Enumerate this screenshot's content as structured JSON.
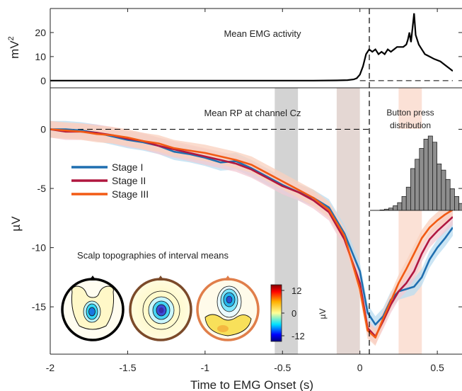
{
  "chart_data": [
    {
      "type": "line",
      "title": "Mean EMG activity",
      "ylabel": "mV",
      "ylabel_sup": "2",
      "xlim": [
        -2,
        0.6
      ],
      "ylim": [
        -3,
        30
      ],
      "yticks": [
        0,
        10,
        20
      ],
      "zero_line": 0,
      "series": [
        {
          "color": "#000000",
          "x": [
            -2,
            -0.3,
            -0.15,
            -0.08,
            -0.04,
            -0.02,
            0,
            0.02,
            0.04,
            0.06,
            0.08,
            0.1,
            0.12,
            0.14,
            0.16,
            0.18,
            0.2,
            0.22,
            0.24,
            0.26,
            0.28,
            0.3,
            0.31,
            0.32,
            0.33,
            0.34,
            0.35,
            0.36,
            0.38,
            0.4,
            0.42,
            0.45,
            0.48,
            0.52,
            0.56,
            0.6
          ],
          "y": [
            0,
            0,
            0.1,
            0.2,
            0.5,
            1,
            2.5,
            6,
            11,
            13,
            12,
            13,
            11,
            12,
            11,
            13,
            12,
            13,
            14,
            14,
            14,
            15,
            17,
            20,
            16,
            22,
            28,
            19,
            15,
            13,
            11,
            10,
            9,
            8,
            6,
            4
          ]
        }
      ]
    },
    {
      "type": "line",
      "title": "Mean RP at channel Cz",
      "xlabel": "Time to EMG Onset (s)",
      "ylabel": "µV",
      "xlim": [
        -2,
        0.6
      ],
      "ylim": [
        -19,
        3.5
      ],
      "xticks": [
        -2,
        -1.5,
        -1,
        -0.5,
        0,
        0.5
      ],
      "xtick_labels": [
        "-2",
        "-1.5",
        "-1",
        "-0.5",
        "0",
        "0.5"
      ],
      "yticks": [
        -15,
        -10,
        -5,
        0
      ],
      "zero_line": 0,
      "shaded_intervals": [
        {
          "from": -0.55,
          "to": -0.4,
          "color": "#d3d3d3"
        },
        {
          "from": -0.15,
          "to": 0,
          "color": "#e4d7d3"
        },
        {
          "from": 0.25,
          "to": 0.4,
          "color": "#fbe1d6"
        }
      ],
      "legend": {
        "placement": "middle-left"
      },
      "series": [
        {
          "name": "Stage I",
          "color": "#1f6fb0",
          "band": "#b9dcf0",
          "x": [
            -2,
            -1.9,
            -1.8,
            -1.7,
            -1.6,
            -1.5,
            -1.4,
            -1.3,
            -1.2,
            -1.1,
            -1.0,
            -0.9,
            -0.8,
            -0.7,
            -0.6,
            -0.5,
            -0.4,
            -0.3,
            -0.2,
            -0.1,
            0,
            0.05,
            0.1,
            0.15,
            0.2,
            0.25,
            0.3,
            0.35,
            0.4,
            0.45,
            0.5,
            0.55,
            0.6
          ],
          "y": [
            0,
            0,
            -0.1,
            -0.3,
            -0.6,
            -0.9,
            -1.1,
            -1.4,
            -1.9,
            -2.1,
            -2.4,
            -2.8,
            -2.7,
            -3.3,
            -4.0,
            -4.7,
            -5.3,
            -5.8,
            -6.6,
            -8.8,
            -12.0,
            -15.5,
            -16.5,
            -15.8,
            -14.4,
            -13.7,
            -13.5,
            -13.3,
            -12.5,
            -11.0,
            -10.0,
            -9.2,
            -8.3
          ]
        },
        {
          "name": "Stage II",
          "color": "#b0173f",
          "band": "#f3c9d3",
          "x": [
            -2,
            -1.9,
            -1.8,
            -1.7,
            -1.6,
            -1.5,
            -1.4,
            -1.3,
            -1.2,
            -1.1,
            -1.0,
            -0.9,
            -0.8,
            -0.7,
            -0.6,
            -0.5,
            -0.4,
            -0.3,
            -0.2,
            -0.1,
            0,
            0.05,
            0.1,
            0.15,
            0.2,
            0.25,
            0.3,
            0.35,
            0.4,
            0.45,
            0.5,
            0.55,
            0.6
          ],
          "y": [
            0,
            -0.2,
            -0.2,
            -0.3,
            -0.5,
            -0.8,
            -1.0,
            -1.4,
            -1.7,
            -2.0,
            -2.3,
            -2.6,
            -2.9,
            -3.4,
            -4.1,
            -4.8,
            -5.3,
            -6.0,
            -7.0,
            -9.3,
            -13.0,
            -16.8,
            -17.5,
            -16.2,
            -14.8,
            -13.7,
            -13.0,
            -12.0,
            -10.5,
            -9.3,
            -8.6,
            -8.0,
            -7.4
          ]
        },
        {
          "name": "Stage III",
          "color": "#f25a14",
          "band": "#fad0bd",
          "x": [
            -2,
            -1.9,
            -1.8,
            -1.7,
            -1.6,
            -1.5,
            -1.4,
            -1.3,
            -1.2,
            -1.1,
            -1.0,
            -0.9,
            -0.8,
            -0.7,
            -0.6,
            -0.5,
            -0.4,
            -0.3,
            -0.2,
            -0.1,
            0,
            0.05,
            0.1,
            0.15,
            0.2,
            0.25,
            0.3,
            0.35,
            0.4,
            0.45,
            0.5,
            0.55,
            0.6
          ],
          "y": [
            0,
            -0.1,
            -0.2,
            -0.4,
            -0.5,
            -0.7,
            -1.0,
            -1.2,
            -1.6,
            -1.8,
            -2.0,
            -2.3,
            -2.6,
            -3.0,
            -3.7,
            -4.4,
            -5.1,
            -5.8,
            -6.8,
            -9.0,
            -13.5,
            -17.0,
            -17.6,
            -16.0,
            -14.5,
            -13.0,
            -11.8,
            -10.5,
            -9.2,
            -8.3,
            -7.7,
            -7.2,
            -6.8
          ]
        }
      ]
    },
    {
      "type": "bar",
      "title": "Button press distribution",
      "values": [
        0.3,
        0.8,
        1.5,
        3,
        5,
        9,
        15,
        27,
        33,
        40,
        46,
        48,
        44,
        30,
        26,
        20,
        14,
        9,
        4.5,
        1.5,
        0.5
      ]
    }
  ],
  "inset": {
    "title": "Scalp topographies of interval means",
    "colorbar": {
      "ticks": [
        12,
        0,
        -12
      ],
      "label": "µV"
    },
    "maps": [
      {
        "ring_color": "#000000"
      },
      {
        "ring_color": "#7b4a2a"
      },
      {
        "ring_color": "#e07e4a"
      }
    ]
  },
  "colors": {
    "axis": "#222222",
    "dashed": "#000000"
  }
}
